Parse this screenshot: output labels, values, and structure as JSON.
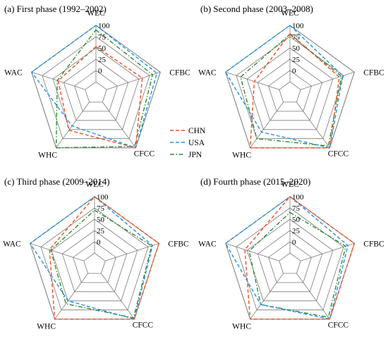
{
  "chart_data": {
    "type": "radar",
    "axes": [
      "WEC",
      "CFBC",
      "CFCC",
      "WHC",
      "WAC"
    ],
    "ticks": [
      "0",
      "25",
      "50",
      "75",
      "100"
    ],
    "rlim": [
      0,
      100
    ],
    "grid": true,
    "legend": {
      "placement": "center",
      "entries": [
        {
          "name": "CHN",
          "color": "#f04e23",
          "dash": "dashed"
        },
        {
          "name": "USA",
          "color": "#1e90e6",
          "dash": "dashed"
        },
        {
          "name": "JPN",
          "color": "#2e8b2e",
          "dash": "dashdot"
        }
      ]
    },
    "panels": [
      {
        "title": "(a) First phase (1992–2002)",
        "series": [
          {
            "name": "CHN",
            "values": [
              53,
              58,
              100,
              52,
              38
            ]
          },
          {
            "name": "USA",
            "values": [
              100,
              92,
              100,
              40,
              100
            ]
          },
          {
            "name": "JPN",
            "values": [
              90,
              82,
              96,
              100,
              40
            ]
          }
        ]
      },
      {
        "title": "(b) Second phase (2003–2008)",
        "series": [
          {
            "name": "CHN",
            "values": [
              82,
              65,
              100,
              100,
              33
            ]
          },
          {
            "name": "USA",
            "values": [
              100,
              73,
              100,
              57,
              100
            ]
          },
          {
            "name": "JPN",
            "values": [
              80,
              70,
              95,
              75,
              65
            ]
          }
        ]
      },
      {
        "title": "(c) Third phase (2009–2014)",
        "series": [
          {
            "name": "CHN",
            "values": [
              100,
              100,
              100,
              100,
              55
            ]
          },
          {
            "name": "USA",
            "values": [
              100,
              85,
              100,
              50,
              100
            ]
          },
          {
            "name": "JPN",
            "values": [
              70,
              83,
              97,
              58,
              52
            ]
          }
        ]
      },
      {
        "title": "(d) Fourth phase (2015–2020)",
        "series": [
          {
            "name": "CHN",
            "values": [
              100,
              100,
              100,
              100,
              55
            ]
          },
          {
            "name": "USA",
            "values": [
              100,
              85,
              100,
              60,
              100
            ]
          },
          {
            "name": "JPN",
            "values": [
              65,
              80,
              95,
              60,
              45
            ]
          }
        ]
      }
    ]
  }
}
